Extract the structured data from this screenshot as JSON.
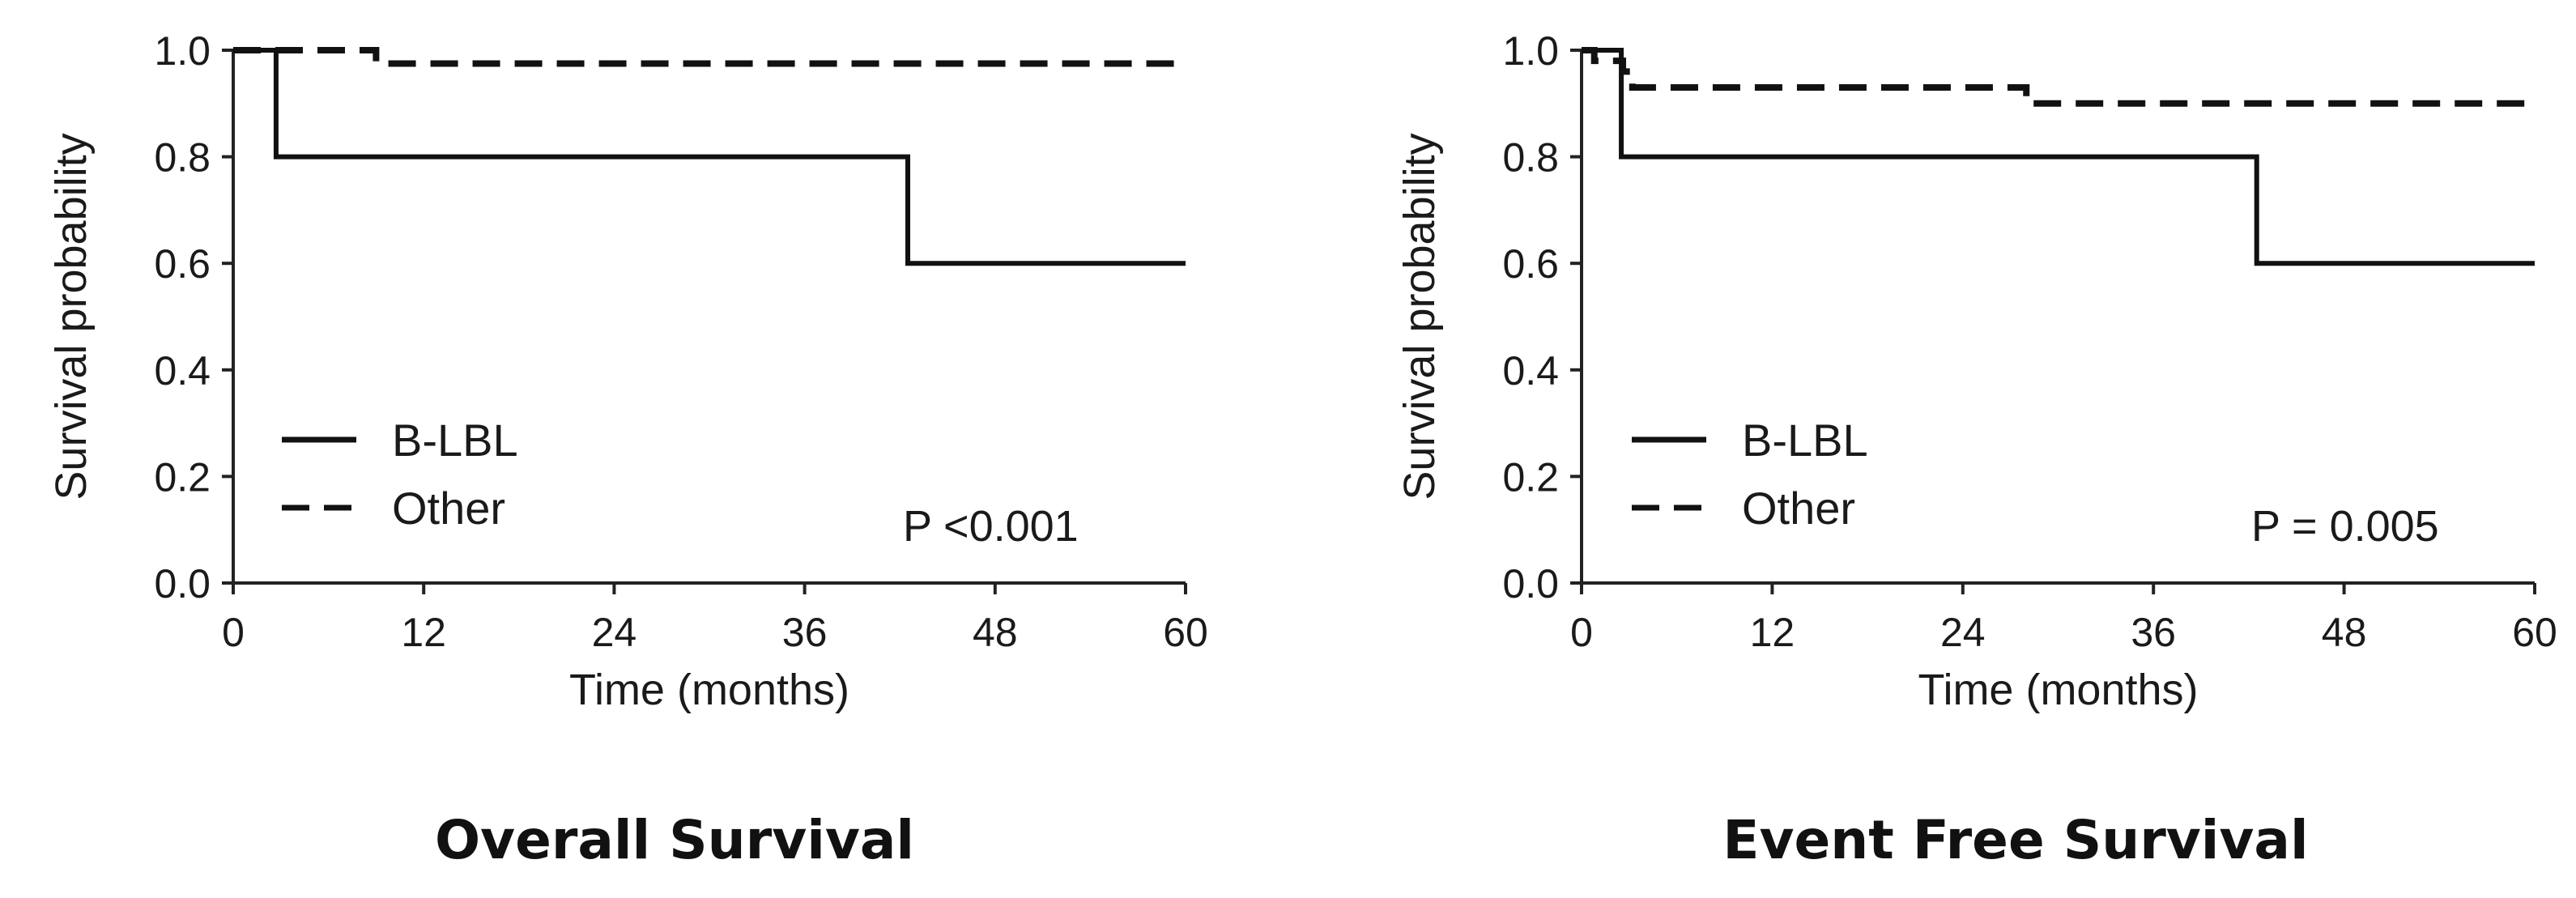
{
  "chart_data": [
    {
      "type": "line",
      "subtype": "kaplan-meier step",
      "caption": "Overall Survival",
      "xlabel": "Time (months)",
      "ylabel": "Survival probability",
      "xlim": [
        0,
        60
      ],
      "ylim": [
        0,
        1.0
      ],
      "xticks": [
        "0",
        "12",
        "24",
        "36",
        "48",
        "60"
      ],
      "yticks": [
        "0.0",
        "0.2",
        "0.4",
        "0.6",
        "0.8",
        "1.0"
      ],
      "grid": false,
      "legend_position": "lower-left",
      "p_value_text": "P  <0.001",
      "series": [
        {
          "name": "B-LBL",
          "style": "solid",
          "x": [
            0,
            2.7,
            42.5,
            60
          ],
          "y": [
            1.0,
            0.8,
            0.6,
            0.6
          ]
        },
        {
          "name": "Other",
          "style": "dashed",
          "x": [
            0,
            9,
            60
          ],
          "y": [
            1.0,
            0.975,
            0.975
          ]
        }
      ]
    },
    {
      "type": "line",
      "subtype": "kaplan-meier step",
      "caption": "Event Free Survival",
      "xlabel": "Time (months)",
      "ylabel": "Survival probability",
      "xlim": [
        0,
        60
      ],
      "ylim": [
        0,
        1.0
      ],
      "xticks": [
        "0",
        "12",
        "24",
        "36",
        "48",
        "60"
      ],
      "yticks": [
        "0.0",
        "0.2",
        "0.4",
        "0.6",
        "0.8",
        "1.0"
      ],
      "grid": false,
      "legend_position": "lower-left",
      "p_value_text": "P = 0.005",
      "series": [
        {
          "name": "B-LBL",
          "style": "solid",
          "x": [
            0,
            2.5,
            42.5,
            60
          ],
          "y": [
            1.0,
            0.8,
            0.6,
            0.6
          ]
        },
        {
          "name": "Other",
          "style": "dashed",
          "x": [
            0,
            0.8,
            2.6,
            3.2,
            28,
            60
          ],
          "y": [
            1.0,
            0.98,
            0.96,
            0.93,
            0.9,
            0.9
          ]
        }
      ]
    }
  ]
}
